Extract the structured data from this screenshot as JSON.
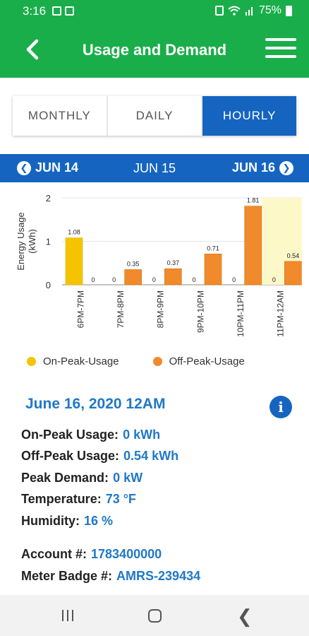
{
  "status_bar": {
    "time": "3:16",
    "battery": "75%"
  },
  "header": {
    "title": "Usage and Demand"
  },
  "tabs": [
    {
      "label": "MONTHLY",
      "active": false
    },
    {
      "label": "DAILY",
      "active": false
    },
    {
      "label": "HOURLY",
      "active": true
    }
  ],
  "date_nav": {
    "prev": "JUN 14",
    "current": "JUN 15",
    "next": "JUN 16"
  },
  "colors": {
    "brand_green": "#1aae4a",
    "brand_blue": "#1565c0",
    "on_peak": "#f5c400",
    "off_peak": "#f08a2c",
    "highlight": "#fcf8c8",
    "value_blue": "#1f78c8"
  },
  "chart_data": {
    "type": "bar",
    "ylabel": "Energy Usage (kWh)",
    "ylim": [
      0,
      2
    ],
    "yticks": [
      "0",
      "1",
      "2"
    ],
    "categories": [
      "6PM-7PM",
      "7PM-8PM",
      "8PM-9PM",
      "9PM-10PM",
      "10PM-11PM",
      "11PM-12AM"
    ],
    "series": [
      {
        "name": "On-Peak-Usage",
        "values": [
          1.08,
          0,
          0,
          0,
          0,
          0
        ],
        "labels": [
          "1.08",
          "0",
          "0",
          "0",
          "0",
          "0"
        ]
      },
      {
        "name": "Off-Peak-Usage",
        "values": [
          0,
          0.35,
          0.37,
          0.71,
          1.81,
          0.54
        ],
        "labels": [
          "0",
          "0.35",
          "0.37",
          "0.71",
          "1.81",
          "0.54"
        ]
      }
    ],
    "highlighted_category": "11PM-12AM",
    "legend_position": "bottom"
  },
  "details": {
    "title": "June 16, 2020 12AM",
    "rows": [
      {
        "label": "On-Peak Usage:",
        "value": "0 kWh"
      },
      {
        "label": "Off-Peak Usage:",
        "value": "0.54 kWh"
      },
      {
        "label": "Peak Demand:",
        "value": "0 kW"
      },
      {
        "label": "Temperature:",
        "value": "73 °F"
      },
      {
        "label": "Humidity:",
        "value": "16 %"
      }
    ],
    "account_rows": [
      {
        "label": "Account #:",
        "value": "1783400000"
      },
      {
        "label": "Meter Badge #:",
        "value": "AMRS-239434"
      }
    ]
  },
  "icons": {
    "back": "back-arrow-icon",
    "menu": "hamburger-menu-icon",
    "info": "info-icon",
    "prev": "circle-left-arrow-icon",
    "next": "circle-right-arrow-icon"
  }
}
